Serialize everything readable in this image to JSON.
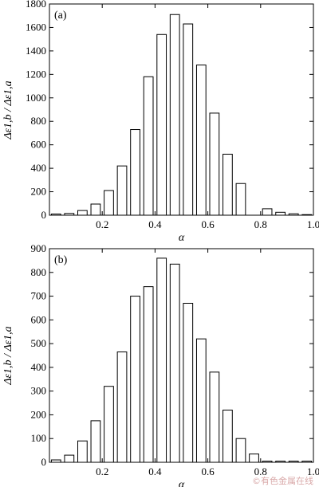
{
  "chart_data": [
    {
      "type": "bar",
      "panel_label": "(a)",
      "xlabel": "α",
      "ylabel": "Δε1,b / Δε1,a",
      "xlim": [
        0,
        1.0
      ],
      "ylim": [
        0,
        1800
      ],
      "xticks": [
        0.2,
        0.4,
        0.6,
        0.8,
        1.0
      ],
      "xtick_labels": [
        "0.2",
        "0.4",
        "0.6",
        "0.8",
        "1.0"
      ],
      "yticks": [
        0,
        200,
        400,
        600,
        800,
        1000,
        1200,
        1400,
        1600,
        1800
      ],
      "ytick_labels": [
        "0",
        "200",
        "400",
        "600",
        "800",
        "1000",
        "1200",
        "1400",
        "1600",
        "1800"
      ],
      "bin_width": 0.05,
      "x": [
        0.025,
        0.075,
        0.125,
        0.175,
        0.225,
        0.275,
        0.325,
        0.375,
        0.425,
        0.475,
        0.525,
        0.575,
        0.625,
        0.675,
        0.725,
        0.775,
        0.825,
        0.875,
        0.925,
        0.975
      ],
      "values": [
        10,
        15,
        40,
        95,
        210,
        420,
        730,
        1180,
        1540,
        1710,
        1630,
        1280,
        870,
        520,
        270,
        0,
        55,
        25,
        12,
        5
      ]
    },
    {
      "type": "bar",
      "panel_label": "(b)",
      "xlabel": "α",
      "ylabel": "Δε1,b / Δε1,a",
      "xlim": [
        0,
        1.0
      ],
      "ylim": [
        0,
        900
      ],
      "xticks": [
        0.2,
        0.4,
        0.6,
        0.8,
        1.0
      ],
      "xtick_labels": [
        "0.2",
        "0.4",
        "0.6",
        "0.8",
        "1.0"
      ],
      "yticks": [
        0,
        100,
        200,
        300,
        400,
        500,
        600,
        700,
        800,
        900
      ],
      "ytick_labels": [
        "0",
        "100",
        "200",
        "300",
        "400",
        "500",
        "600",
        "700",
        "800",
        "900"
      ],
      "bin_width": 0.05,
      "x": [
        0.025,
        0.075,
        0.125,
        0.175,
        0.225,
        0.275,
        0.325,
        0.375,
        0.425,
        0.475,
        0.525,
        0.575,
        0.625,
        0.675,
        0.725,
        0.775,
        0.825,
        0.875,
        0.925,
        0.975
      ],
      "values": [
        10,
        30,
        90,
        175,
        320,
        465,
        700,
        740,
        860,
        835,
        670,
        520,
        380,
        220,
        100,
        35,
        5,
        5,
        5,
        5
      ]
    }
  ],
  "watermark": "©有色金属在线"
}
